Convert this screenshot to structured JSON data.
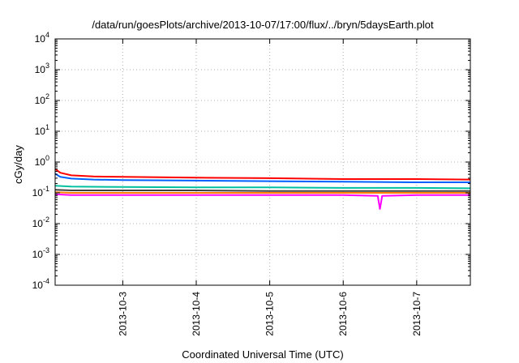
{
  "chart_data": {
    "type": "line",
    "title": "/data/run/goesPlots/archive/2013-10-07/17:00/flux/../bryn/5daysEarth.plot",
    "xlabel": "Coordinated Universal Time (UTC)",
    "ylabel": "cGy/day",
    "x_tick_labels": [
      "2013-10-3",
      "2013-10-4",
      "2013-10-5",
      "2013-10-6",
      "2013-10-7"
    ],
    "x_tick_days": [
      3,
      4,
      5,
      6,
      7
    ],
    "xlim": [
      2.08,
      7.73
    ],
    "yscale": "log",
    "ylim": [
      0.0001,
      10000
    ],
    "y_ticks": [
      {
        "value": 0.0001,
        "base": "10",
        "exp": "-4"
      },
      {
        "value": 0.001,
        "base": "10",
        "exp": "-3"
      },
      {
        "value": 0.01,
        "base": "10",
        "exp": "-2"
      },
      {
        "value": 0.1,
        "base": "10",
        "exp": "-1"
      },
      {
        "value": 1,
        "base": "10",
        "exp": "0"
      },
      {
        "value": 10,
        "base": "10",
        "exp": "1"
      },
      {
        "value": 100,
        "base": "10",
        "exp": "2"
      },
      {
        "value": 1000,
        "base": "10",
        "exp": "3"
      },
      {
        "value": 10000,
        "base": "10",
        "exp": "4"
      }
    ],
    "grid": true,
    "legend": "none",
    "series": [
      {
        "color": "#ff0000",
        "x": [
          2.08,
          2.15,
          2.3,
          2.6,
          3.0,
          4.0,
          5.0,
          6.0,
          7.0,
          7.73
        ],
        "values": [
          0.6,
          0.45,
          0.37,
          0.34,
          0.33,
          0.31,
          0.3,
          0.28,
          0.28,
          0.27
        ]
      },
      {
        "color": "#0060ff",
        "x": [
          2.08,
          2.15,
          2.3,
          2.6,
          3.0,
          4.0,
          5.0,
          6.0,
          7.0,
          7.73
        ],
        "values": [
          0.42,
          0.33,
          0.29,
          0.27,
          0.26,
          0.25,
          0.24,
          0.23,
          0.22,
          0.22
        ]
      },
      {
        "color": "#00c0a0",
        "x": [
          2.08,
          2.3,
          3.0,
          4.0,
          5.0,
          6.0,
          7.0,
          7.73
        ],
        "values": [
          0.17,
          0.16,
          0.155,
          0.15,
          0.15,
          0.145,
          0.145,
          0.14
        ]
      },
      {
        "color": "#404040",
        "x": [
          2.08,
          2.3,
          3.0,
          4.0,
          5.0,
          6.0,
          7.0,
          7.73
        ],
        "values": [
          0.125,
          0.12,
          0.12,
          0.12,
          0.115,
          0.115,
          0.115,
          0.115
        ]
      },
      {
        "color": "#ff8000",
        "x": [
          2.08,
          2.3,
          3.0,
          4.0,
          5.0,
          6.0,
          7.0,
          7.73
        ],
        "values": [
          0.105,
          0.1,
          0.1,
          0.1,
          0.1,
          0.1,
          0.1,
          0.1
        ]
      },
      {
        "color": "#ff00ff",
        "x": [
          2.08,
          2.3,
          3.0,
          4.0,
          5.0,
          6.0,
          6.47,
          6.5,
          6.53,
          7.0,
          7.73
        ],
        "values": [
          0.09,
          0.085,
          0.085,
          0.085,
          0.085,
          0.085,
          0.08,
          0.03,
          0.08,
          0.085,
          0.085
        ]
      }
    ]
  }
}
